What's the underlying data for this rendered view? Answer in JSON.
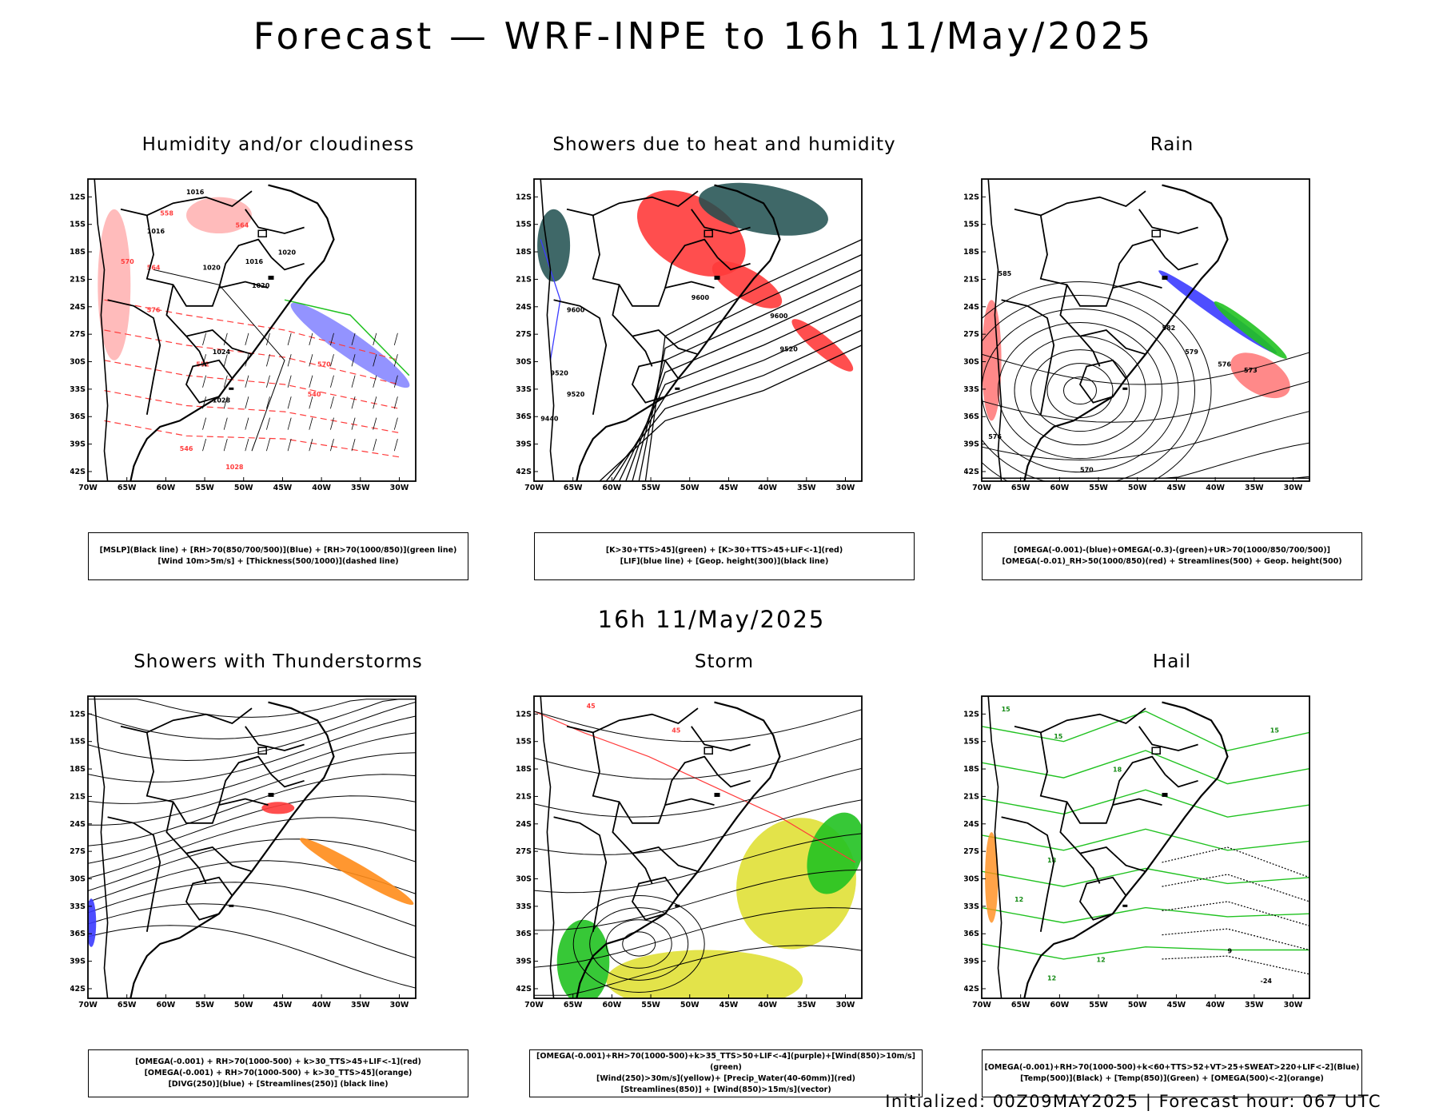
{
  "title": "Forecast — WRF-INPE to 16h 11/May/2025",
  "mid_title": "16h 11/May/2025",
  "footer": "Initialized: 00Z09MAY2025 | Forecast hour: 067 UTC",
  "axes": {
    "lat_labels": [
      "12S",
      "15S",
      "18S",
      "21S",
      "24S",
      "27S",
      "30S",
      "33S",
      "36S",
      "39S",
      "42S"
    ],
    "lon_labels": [
      "70W",
      "65W",
      "60W",
      "55W",
      "50W",
      "45W",
      "40W",
      "35W",
      "30W"
    ]
  },
  "colors": {
    "red": "#ff3b3b",
    "blue": "#3b3bff",
    "green": "#21c221",
    "teal": "#1d4d4d",
    "yellow": "#dede2a",
    "orange": "#ff8c1a",
    "black": "#000000"
  },
  "panels": [
    {
      "id": "humidity",
      "title": "Humidity and/or cloudiness",
      "legend": [
        "[MSLP](Black line) + [RH>70(850/700/500)](Blue) + [RH>70(1000/850)](green line)",
        "[Wind 10m>5m/s] + [Thickness(500/1000)](dashed line)"
      ],
      "contour_labels": [
        "1016",
        "1016",
        "1016",
        "1020",
        "1020",
        "1020",
        "1024",
        "1028",
        "1028",
        "570",
        "576",
        "570",
        "564",
        "558",
        "552",
        "546",
        "540",
        "564"
      ]
    },
    {
      "id": "heat_showers",
      "title": "Showers due to heat and humidity",
      "legend": [
        "[K>30+TTS>45](green) + [K>30+TTS>45+LIF<-1](red)",
        "[LIF](blue line) + [Geop. height(300)](black line)"
      ],
      "contour_labels": [
        "9600",
        "9600",
        "9600",
        "9520",
        "9520",
        "9520",
        "9440"
      ]
    },
    {
      "id": "rain",
      "title": "Rain",
      "legend": [
        "[OMEGA(-0.001)-(blue)+OMEGA(-0.3)-(green)+UR>70(1000/850/700/500)]",
        "[OMEGA(-0.01)_RH>50(1000/850)(red) + Streamlines(500) + Geop. height(500)"
      ],
      "contour_labels": [
        "585",
        "582",
        "579",
        "576",
        "573",
        "570",
        "576"
      ]
    },
    {
      "id": "thunderstorms",
      "title": "Showers with Thunderstorms",
      "legend": [
        "[OMEGA(-0.001) + RH>70(1000-500) + k>30_TTS>45+LIF<-1](red)",
        "[OMEGA(-0.001) + RH>70(1000-500) + k>30_TTS>45](orange)",
        "[DIVG(250)](blue) + [Streamlines(250)] (black line)"
      ],
      "contour_labels": []
    },
    {
      "id": "storm",
      "title": "Storm",
      "legend": [
        "[OMEGA(-0.001)+RH>70(1000-500)+k>35_TTS>50+LIF<-4](purple)+[Wind(850)>10m/s](green)",
        "[Wind(250)>30m/s](yellow)+ [Precip_Water(40-60mm)](red)",
        "[Streamlines(850)] + [Wind(850)>15m/s](vector)"
      ],
      "contour_labels": [
        "45",
        "45"
      ]
    },
    {
      "id": "hail",
      "title": "Hail",
      "legend": [
        "[OMEGA(-0.001)+RH>70(1000-500)+k<60+TTS>52+VT>25+SWEAT>220+LIF<-2](Blue)",
        "[Temp(500)](Black) + [Temp(850)](Green) + [OMEGA(500)<-2](orange)"
      ],
      "contour_labels": [
        "15",
        "15",
        "15",
        "18",
        "18",
        "12",
        "12",
        "12",
        "9",
        "-24"
      ]
    }
  ]
}
